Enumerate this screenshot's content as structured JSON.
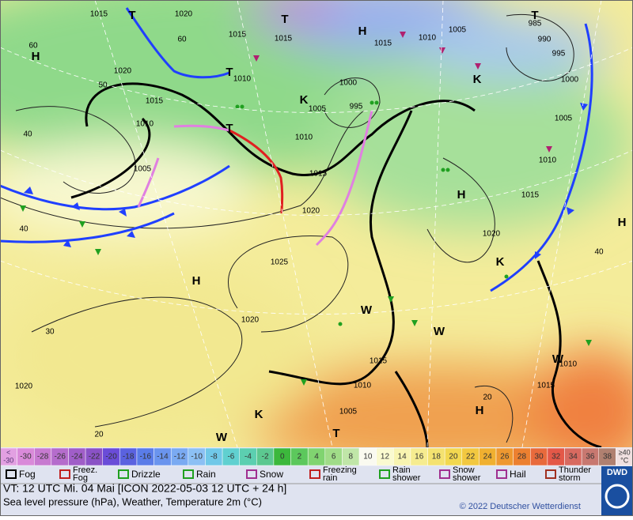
{
  "map": {
    "labels": [
      "1015",
      "1020",
      "T",
      "60",
      "60",
      "H",
      "1020",
      "50",
      "1015",
      "1010",
      "40",
      "1005",
      "40",
      "T",
      "1010",
      "T",
      "1015",
      "1015",
      "T",
      "H",
      "1015",
      "1010",
      "1005",
      "T",
      "985",
      "990",
      "995",
      "1000",
      "1000",
      "995",
      "1005",
      "K",
      "K",
      "1010",
      "1005",
      "1010",
      "1015",
      "1020",
      "H",
      "1015",
      "1020",
      "H",
      "1025",
      "H",
      "1020",
      "30",
      "1015",
      "1010",
      "1010",
      "1015",
      "1020",
      "20",
      "H",
      "1005",
      "K",
      "T",
      "W",
      "20",
      "40",
      "K",
      "W",
      "W",
      "W"
    ]
  },
  "scale": {
    "lowest": [
      "<",
      "-30"
    ],
    "labels": [
      -30,
      -28,
      -26,
      -24,
      -22,
      -20,
      -18,
      -16,
      -14,
      -12,
      -10,
      -8,
      -6,
      -4,
      -2,
      0,
      2,
      4,
      6,
      8,
      10,
      12,
      14,
      16,
      18,
      20,
      22,
      24,
      26,
      28,
      30,
      32,
      34,
      36,
      38
    ],
    "colors": [
      "#d98ad9",
      "#c77ad0",
      "#b56ccc",
      "#a05ec8",
      "#8a52c6",
      "#6a4cd8",
      "#5a62e0",
      "#5a7ce8",
      "#6a94ee",
      "#7aaaf2",
      "#8cc0f4",
      "#70c8e8",
      "#60d0d0",
      "#5ccfb0",
      "#5cc890",
      "#3cb83c",
      "#5cc85c",
      "#80d470",
      "#a0dc88",
      "#c0e6a8",
      "#fafaf0",
      "#fafad0",
      "#f8f4b0",
      "#f6ec90",
      "#f4e270",
      "#f2d850",
      "#f2c840",
      "#f0b030",
      "#ee9830",
      "#ec8030",
      "#e86a3c",
      "#e45848",
      "#d86a60",
      "#c87870",
      "#b08070"
    ],
    "highest": [
      "≥40",
      "°C"
    ],
    "lowest_color": "#e2a0e2",
    "highest_color": "#f0e0e0"
  },
  "legend": [
    [
      "Fog"
    ],
    [
      "Freez.",
      "Fog"
    ],
    [
      "Drizzle"
    ],
    [
      "Rain"
    ],
    [
      "Snow"
    ],
    [
      "Freezing",
      "rain"
    ],
    [
      "Rain",
      "shower"
    ],
    [
      "Snow",
      "shower"
    ],
    [
      "Hail"
    ],
    [
      "Thunder",
      "storm"
    ]
  ],
  "footer": {
    "line1": "VT: 12 UTC Mi.  04 Mai [ICON 2022-05-03  12 UTC + 24 h]",
    "line2": "Sea level pressure (hPa), Weather, Temperature 2m (°C)",
    "copyright": "© 2022 Deutscher Wetterdienst",
    "logo": "DWD"
  }
}
